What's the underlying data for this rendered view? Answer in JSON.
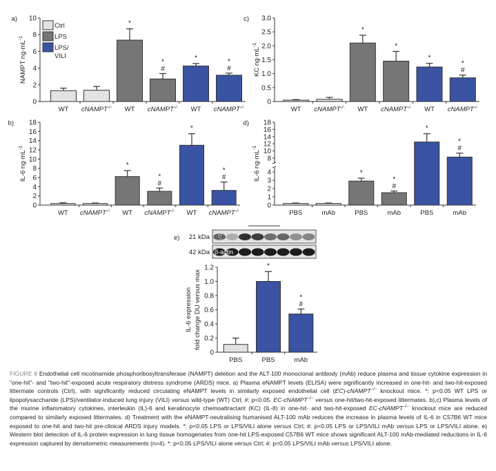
{
  "colors": {
    "ctrl": "#e2e2e2",
    "lps": "#767676",
    "vili": "#3a53a3",
    "outline": "#333333"
  },
  "legend": [
    {
      "key": "ctrl",
      "label": "Ctrl"
    },
    {
      "key": "lps",
      "label": "LPS"
    },
    {
      "key": "vili",
      "label": "LPS/",
      "label2": "VILI"
    }
  ],
  "chart_data": [
    {
      "id": "a",
      "panel_label": "a)",
      "type": "bar",
      "ylabel": "NAMPT ng·mL",
      "ylabel_sup": "-1",
      "ylim": [
        0,
        10
      ],
      "yticks": [
        0,
        2,
        4,
        6,
        8,
        10
      ],
      "categories": [
        {
          "text": "WT"
        },
        {
          "text": "cNAMPT",
          "sup": "-/-",
          "italic": true
        },
        {
          "text": "WT"
        },
        {
          "text": "cNAMPT",
          "sup": "-/-",
          "italic": true
        },
        {
          "text": "WT"
        },
        {
          "text": "cNAMPT",
          "sup": "-/-",
          "italic": true
        }
      ],
      "groups": [
        "ctrl",
        "ctrl",
        "lps",
        "lps",
        "vili",
        "vili"
      ],
      "values": [
        1.3,
        1.35,
        7.35,
        2.7,
        4.25,
        3.15
      ],
      "error_top": [
        1.6,
        1.8,
        8.7,
        3.35,
        4.55,
        3.4
      ],
      "annotations": [
        "",
        "",
        "*",
        "*#",
        "*",
        "*#"
      ]
    },
    {
      "id": "c",
      "panel_label": "c)",
      "type": "bar",
      "ylabel": "KC ng·mL",
      "ylabel_sup": "-1",
      "ylim": [
        0,
        3
      ],
      "yticks": [
        "0",
        "0.5",
        "1.0",
        "1.5",
        "2.0",
        "2.5",
        "3.0"
      ],
      "categories": [
        {
          "text": "WT"
        },
        {
          "text": "cNAMPT",
          "sup": "-/-",
          "italic": true
        },
        {
          "text": "WT"
        },
        {
          "text": "cNAMPT",
          "sup": "-/-",
          "italic": true
        },
        {
          "text": "WT"
        },
        {
          "text": "cNAMPT",
          "sup": "-/-",
          "italic": true
        }
      ],
      "groups": [
        "ctrl",
        "ctrl",
        "lps",
        "lps",
        "vili",
        "vili"
      ],
      "values": [
        0.05,
        0.08,
        2.1,
        1.45,
        1.24,
        0.85
      ],
      "error_top": [
        0.07,
        0.15,
        2.38,
        1.8,
        1.37,
        0.95
      ],
      "annotations": [
        "",
        "",
        "*",
        "*",
        "*",
        "*#"
      ]
    },
    {
      "id": "b",
      "panel_label": "b)",
      "type": "bar",
      "ylabel": "IL-6 ng·mL",
      "ylabel_sup": "-1",
      "ylim": [
        0,
        18
      ],
      "yticks": [
        0,
        2,
        4,
        6,
        8,
        10,
        12,
        14,
        16,
        18
      ],
      "categories": [
        {
          "text": "WT"
        },
        {
          "text": "cNAMPT",
          "sup": "-/-",
          "italic": true
        },
        {
          "text": "WT"
        },
        {
          "text": "cNAMPT",
          "sup": "-/-",
          "italic": true
        },
        {
          "text": "WT"
        },
        {
          "text": "cNAMPT",
          "sup": "-/-",
          "italic": true
        }
      ],
      "groups": [
        "ctrl",
        "ctrl",
        "lps",
        "lps",
        "vili",
        "vili"
      ],
      "values": [
        0.35,
        0.35,
        6.2,
        3.0,
        13.0,
        3.2
      ],
      "error_top": [
        0.5,
        0.45,
        7.5,
        3.7,
        15.5,
        5.0
      ],
      "annotations": [
        "",
        "",
        "*",
        "*#",
        "*",
        "*#"
      ]
    },
    {
      "id": "d",
      "panel_label": "d)",
      "type": "bar",
      "ylabel": "IL-6 ng·mL",
      "ylabel_sup": "-1",
      "ylim": [
        0,
        18
      ],
      "axis_break": [
        4,
        8
      ],
      "yticks": [
        0,
        1,
        2,
        3,
        4,
        8,
        10,
        12,
        14,
        16,
        18
      ],
      "categories": [
        {
          "text": "PBS"
        },
        {
          "text": "mAb"
        },
        {
          "text": "PBS"
        },
        {
          "text": "mAb"
        },
        {
          "text": "PBS"
        },
        {
          "text": "mAb"
        }
      ],
      "groups": [
        "ctrl",
        "ctrl",
        "lps",
        "lps",
        "vili",
        "vili"
      ],
      "values": [
        0.2,
        0.2,
        2.9,
        1.5,
        12.5,
        8.3
      ],
      "error_top": [
        0.25,
        0.25,
        3.25,
        1.7,
        14.8,
        9.4
      ],
      "annotations": [
        "",
        "",
        "*",
        "*#",
        "*",
        "*#"
      ]
    },
    {
      "id": "e",
      "panel_label": "e)",
      "type": "bar",
      "ylabel": "IL-6 expression",
      "ylabel2": "fold change DU versus max",
      "ylim": [
        0,
        1.2
      ],
      "yticks": [
        "0",
        "0.2",
        "0.4",
        "0.6",
        "0.8",
        "1.0",
        "1.2"
      ],
      "categories": [
        {
          "text": "PBS"
        },
        {
          "text": "PBS"
        },
        {
          "text": "mAb"
        }
      ],
      "groups": [
        "ctrl",
        "vili",
        "vili"
      ],
      "values": [
        0.11,
        1.0,
        0.54
      ],
      "error_top": [
        0.2,
        1.14,
        0.61
      ],
      "annotations": [
        "",
        "*",
        "*#"
      ]
    }
  ],
  "blot": {
    "rows": [
      {
        "kda": "21 kDa",
        "label": "IL-6"
      },
      {
        "kda": "42 kDa",
        "label": "β-actin"
      }
    ],
    "il6_intensity": [
      0.45,
      0.25,
      0.85,
      0.8,
      0.55,
      0.6,
      0.4,
      0.45
    ]
  },
  "caption": [
    {
      "t": "FIGURE 8 ",
      "cls": "fig"
    },
    {
      "t": "Endothelial cell nicotinamide phosphoribosyltransferase (NAMPT) deletion and the ALT-100 monoclonal antibody (mAb) reduce plasma and tissue cytokine expression in \"one-hit\"- and \"two-hit\"-exposed acute respiratory distress syndrome (ARDS) mice. a) Plasma eNAMPT levels (ELISA) were significantly increased in one-hit- and two-hit-exposed littermate controls (Ctrl), with significantly reduced circulating eNAMPT levels in similarly exposed endothelial cell ("
    },
    {
      "t": "EC",
      "i": true
    },
    {
      "t": ")-"
    },
    {
      "t": "cNAMPT",
      "i": true,
      "sup": "−/−"
    },
    {
      "t": " knockout mice. *: p<0.05 WT LPS or lipopolysaccharide (LPS)/ventilator-induced lung injury (VILI) "
    },
    {
      "t": "versus",
      "i": true
    },
    {
      "t": " wild-type (WT) Ctrl; #: p<0.05. "
    },
    {
      "t": "EC-cNAMPT",
      "i": true,
      "sup": "−/−"
    },
    {
      "t": " "
    },
    {
      "t": "versus",
      "i": true
    },
    {
      "t": " one-hit/two-hit-exposed littermates. b),c) Plasma levels of the murine inflammatory cytokines, interleukin (IL)-6 and keratinocyte chemoattractant (KC) (IL-8) in one-hit- and two-hit-exposed "
    },
    {
      "t": "EC-cNAMPT",
      "i": true,
      "sup": "−/−"
    },
    {
      "t": " knockout mice are reduced compared to similarly exposed littermates. d) Treatment with the eNAMPT-neutralising humanised ALT-100 mAb reduces the increase in plasma levels of IL-6 in C57B6 WT mice exposed to one-hit and two-hit pre-clinical ARDS injury models. *: p<0.05 LPS or LPS/VILI alone "
    },
    {
      "t": "versus",
      "i": true
    },
    {
      "t": " Ctrl; #: p<0.05 LPS or LPS/VILI mAb "
    },
    {
      "t": "versus",
      "i": true
    },
    {
      "t": " LPS or LPS/VILI alone. e) Western blot detection of IL-6 protein expression in lung tissue homogenates from one-hit LPS-exposed C57B6 WT mice shows significant ALT-100 mAb-mediated reductions in IL-6 expression captured by densitometric measurements (n=4). *: p<0.05 LPS/VILI alone "
    },
    {
      "t": "versus",
      "i": true
    },
    {
      "t": " Ctrl; #: p<0.05 LPS/VILI mAb "
    },
    {
      "t": "versus",
      "i": true
    },
    {
      "t": " LPS/VILI alone."
    }
  ]
}
